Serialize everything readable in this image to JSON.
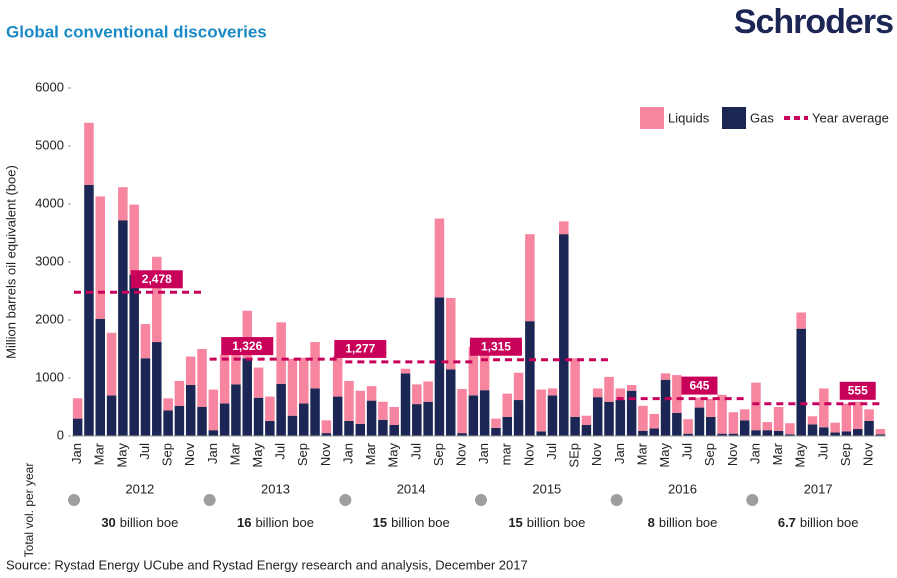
{
  "chart_data": {
    "type": "bar",
    "title": "Global conventional discoveries",
    "brand": "Schroders",
    "y_label": "Million barrels oil equivalent (boe)",
    "source": "Source: Rystad Energy UCube and Rystad Energy research and analysis, December 2017",
    "ylim": [
      0,
      6000
    ],
    "yticks": [
      0,
      1000,
      2000,
      3000,
      4000,
      5000,
      6000
    ],
    "categories": [
      "Jan",
      null,
      "Mar",
      null,
      "May",
      null,
      "Jul",
      null,
      "Sep",
      null,
      "Nov",
      null,
      "Jan",
      null,
      "Mar",
      null,
      "May",
      null,
      "Jul",
      null,
      "Sep",
      null,
      "Nov",
      null,
      "Jan",
      null,
      "Mar",
      null,
      "May",
      null,
      "Jul",
      null,
      "Sep",
      null,
      "Nov",
      null,
      "Jan",
      null,
      "mar",
      null,
      "Nov",
      null,
      "Jul",
      null,
      "SEp",
      null,
      "Nov",
      null,
      "Jan",
      null,
      "Mar",
      null,
      "May",
      null,
      "Jul",
      null,
      "Sep",
      null,
      "Nov",
      null,
      "Jan",
      null,
      "Mar",
      null,
      "May",
      null,
      "Jul",
      null,
      "Sep",
      null,
      "Nov",
      null
    ],
    "series": [
      {
        "name": "Liquids",
        "color": "#f7859f",
        "values": [
          350,
          1070,
          2110,
          1080,
          570,
          1210,
          590,
          1470,
          210,
          430,
          490,
          1000,
          700,
          840,
          710,
          820,
          520,
          420,
          1060,
          980,
          790,
          800,
          220,
          700,
          690,
          570,
          250,
          310,
          310,
          80,
          340,
          350,
          1360,
          1230,
          760,
          840,
          690,
          160,
          400,
          470,
          1500,
          720,
          120,
          220,
          1010,
          160,
          150,
          430,
          200,
          100,
          430,
          250,
          110,
          650,
          250,
          170,
          310,
          670,
          370,
          190,
          820,
          140,
          410,
          190,
          280,
          140,
          670,
          170,
          480,
          470,
          200,
          90
        ]
      },
      {
        "name": "Gas",
        "color": "#1c2654",
        "values": [
          300,
          4330,
          2020,
          700,
          3720,
          2780,
          1340,
          1620,
          440,
          520,
          880,
          500,
          100,
          560,
          890,
          1340,
          660,
          260,
          900,
          350,
          560,
          820,
          50,
          680,
          260,
          210,
          610,
          280,
          190,
          1080,
          550,
          590,
          2390,
          1150,
          50,
          700,
          790,
          140,
          330,
          620,
          1980,
          80,
          700,
          3480,
          330,
          190,
          670,
          590,
          620,
          780,
          90,
          130,
          970,
          400,
          40,
          490,
          330,
          40,
          40,
          270,
          100,
          100,
          90,
          30,
          1850,
          200,
          150,
          60,
          80,
          120,
          260,
          30
        ]
      }
    ],
    "year_average": {
      "name": "Year average",
      "color": "#c8005a",
      "values": [
        2478,
        1326,
        1277,
        1315,
        645,
        555
      ],
      "value_labels": [
        "2,478",
        "1,326",
        "1,277",
        "1,315",
        "645",
        "555"
      ]
    },
    "years": [
      "2012",
      "2013",
      "2014",
      "2015",
      "2016",
      "2017"
    ],
    "total_label": "Total vol. per year",
    "total_volumes": [
      {
        "amount": "30",
        "unit": "billion boe"
      },
      {
        "amount": "16",
        "unit": "billion boe"
      },
      {
        "amount": "15",
        "unit": "billion boe"
      },
      {
        "amount": "15",
        "unit": "billion boe"
      },
      {
        "amount": "8",
        "unit": "billion boe"
      },
      {
        "amount": "6.7",
        "unit": "billion boe"
      }
    ]
  }
}
